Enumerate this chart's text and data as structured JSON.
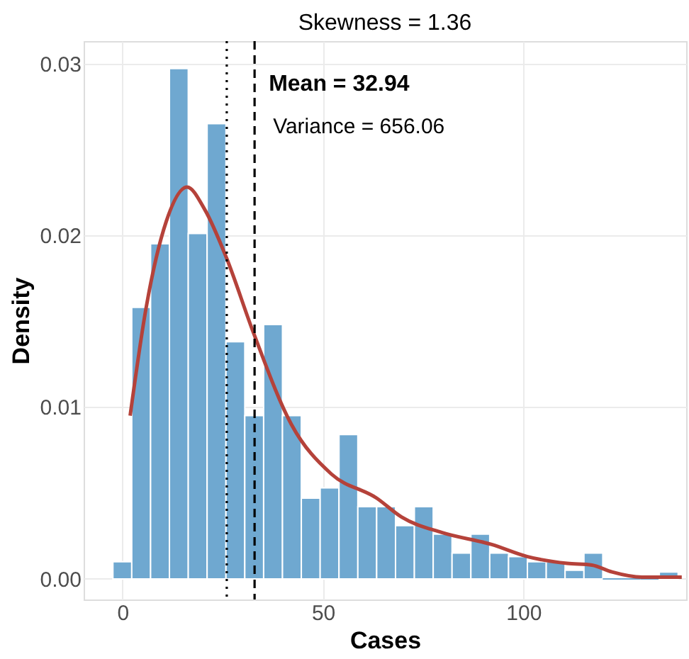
{
  "chart_data": {
    "type": "histogram",
    "title": "Skewness = 1.36",
    "xlabel": "Cases",
    "ylabel": "Density",
    "bins": [
      -2.4,
      2.3,
      7.0,
      11.7,
      16.4,
      21.1,
      25.8,
      30.5,
      35.2,
      39.9,
      44.6,
      49.3,
      54.0,
      58.7,
      63.4,
      68.1,
      72.8,
      77.5,
      82.2,
      86.9,
      91.6,
      96.3,
      101.0,
      105.7,
      110.4,
      115.1,
      119.8,
      124.5,
      129.2,
      133.9,
      138.6
    ],
    "values": [
      0.001,
      0.0158,
      0.0195,
      0.0297,
      0.0201,
      0.0265,
      0.0138,
      0.0095,
      0.0148,
      0.0095,
      0.0047,
      0.0053,
      0.0084,
      0.0042,
      0.0042,
      0.0031,
      0.0042,
      0.0026,
      0.0015,
      0.0026,
      0.0015,
      0.0013,
      0.001,
      0.001,
      0.0005,
      0.0015,
      0,
      0,
      0,
      0.0004
    ],
    "color": "#6fa8d0",
    "series": [
      {
        "type": "line",
        "color": "#b5423a",
        "x": [
          1.9,
          5.9,
          10.9,
          16.1,
          20.5,
          25.9,
          32.7,
          42.1,
          52.1,
          63.4,
          69.6,
          79.6,
          92.1,
          100.9,
          110.9,
          117.1,
          122.1,
          129.6,
          139.5
        ],
        "values": [
          0.0095,
          0.0158,
          0.0208,
          0.0228,
          0.0215,
          0.0187,
          0.0143,
          0.009,
          0.0061,
          0.0047,
          0.0036,
          0.0027,
          0.002,
          0.0013,
          0.0009,
          0.0008,
          0.0004,
          0.0001,
          0.0001
        ]
      }
    ],
    "ref_lines": [
      {
        "axis": "x",
        "value": 26,
        "line_style": "dotted",
        "color": "#000000"
      },
      {
        "axis": "x",
        "value": 32.94,
        "label": "Mean = 32.94",
        "line_style": "dashed",
        "color": "#000000"
      }
    ],
    "annotations": [
      "Variance = 656.06"
    ],
    "xlim": [
      -9.7,
      140.6
    ],
    "ylim": [
      -0.0012,
      0.0313
    ],
    "xticks": [
      0,
      50,
      100
    ],
    "yticks": [
      {
        "value": 0,
        "label": "0.00"
      },
      {
        "value": 0.01,
        "label": "0.01"
      },
      {
        "value": 0.02,
        "label": "0.02"
      },
      {
        "value": 0.03,
        "label": "0.03"
      }
    ],
    "grid": true
  }
}
